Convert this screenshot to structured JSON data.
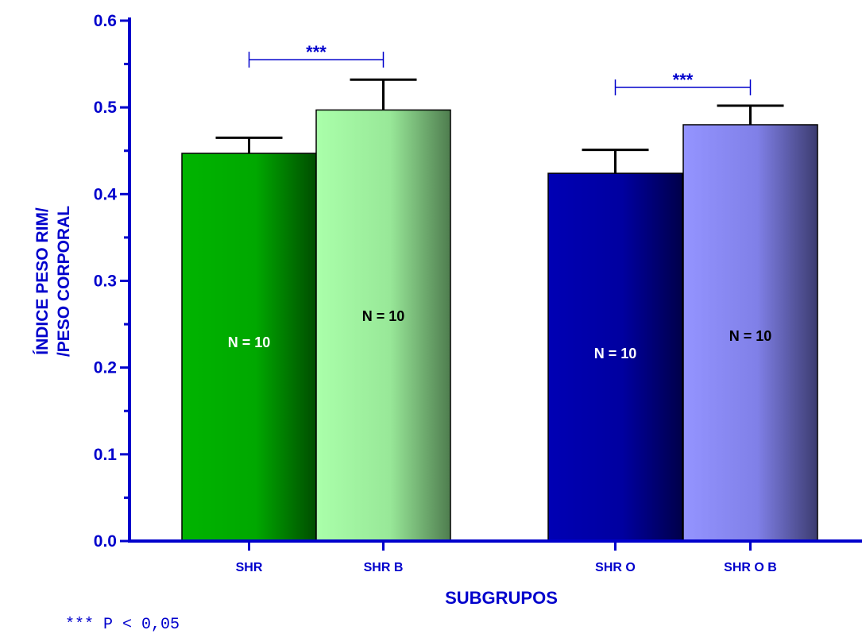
{
  "chart_data": {
    "type": "bar",
    "categories": [
      "SHR",
      "SHR B",
      "SHR O",
      "SHR O B"
    ],
    "values": [
      0.447,
      0.497,
      0.424,
      0.48
    ],
    "error_bars": [
      0.018,
      0.035,
      0.027,
      0.022
    ],
    "bar_labels": [
      "N = 10",
      "N = 10",
      "N = 10",
      "N = 10"
    ],
    "bar_colors": [
      "#00b000",
      "#a4f7a4",
      "#0000a8",
      "#8c8cf7"
    ],
    "bar_label_colors": [
      "#ffffff",
      "#000000",
      "#ffffff",
      "#000000"
    ],
    "ylabel_lines": [
      "ÍNDICE PESO RIM/",
      "/PESO CORPORAL"
    ],
    "xlabel": "SUBGRUPOS",
    "ylim": [
      0,
      0.6
    ],
    "yticks": [
      "0.0",
      "0.1",
      "0.2",
      "0.3",
      "0.4",
      "0.5",
      "0.6"
    ],
    "grid": false,
    "significance": [
      {
        "from": 0,
        "to": 1,
        "label": "***",
        "y": 0.555
      },
      {
        "from": 2,
        "to": 3,
        "label": "***",
        "y": 0.523
      }
    ],
    "footnote": "*** P < 0,05",
    "axis_color": "#0000cc"
  }
}
